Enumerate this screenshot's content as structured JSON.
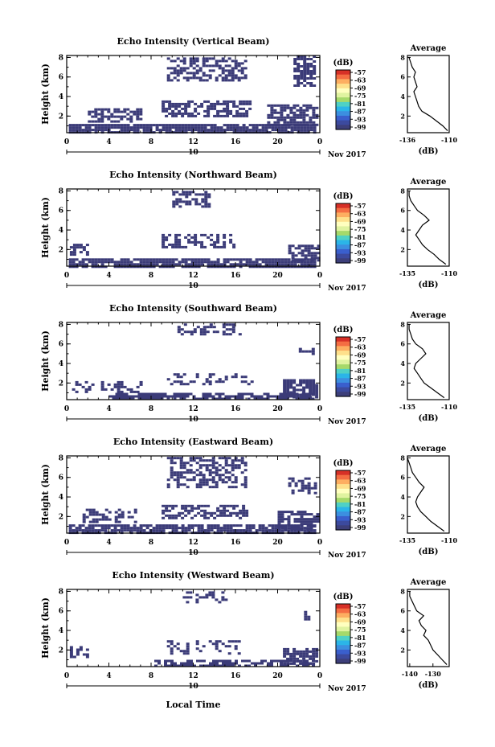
{
  "figure": {
    "xlabel": "Local Time",
    "date_label": "Nov 2017",
    "colorbar_unit": "(dB)",
    "colorbar_ticks": [
      "-57",
      "-63",
      "-69",
      "-75",
      "-81",
      "-87",
      "-93",
      "-99"
    ],
    "colorbar_colors": [
      "#d73027",
      "#f46d43",
      "#fdae61",
      "#fee08b",
      "#ffffbf",
      "#e0f3a0",
      "#a6d96a",
      "#4fd1c5",
      "#2bb5e8",
      "#3c8fe0",
      "#3a5fcd",
      "#3c4a9e",
      "#3d3f7a"
    ],
    "echo_color": "#3b3b78",
    "avg_line_color": "#000000"
  },
  "chart_data": [
    {
      "type": "heatmap",
      "title": "Echo Intensity (Vertical Beam)",
      "ylabel": "Height (km)",
      "x_ticks": [
        "0",
        "4",
        "8",
        "12",
        "16",
        "20",
        "0"
      ],
      "x_day_label": "10",
      "xlim": [
        0,
        24
      ],
      "y_ticks": [
        "2",
        "4",
        "6",
        "8"
      ],
      "ylim": [
        0.3,
        8.2
      ],
      "clim": [
        -99,
        -57
      ],
      "echo_regions": [
        {
          "x": [
            0.2,
            23.5
          ],
          "y": [
            0.3,
            1.2
          ],
          "density": 0.9
        },
        {
          "x": [
            2.0,
            7.0
          ],
          "y": [
            1.5,
            2.8
          ],
          "density": 0.55
        },
        {
          "x": [
            9.0,
            17.5
          ],
          "y": [
            2.0,
            3.6
          ],
          "density": 0.6
        },
        {
          "x": [
            9.5,
            17.0
          ],
          "y": [
            5.6,
            8.0
          ],
          "density": 0.5
        },
        {
          "x": [
            21.5,
            23.6
          ],
          "y": [
            5.0,
            8.2
          ],
          "density": 0.65
        },
        {
          "x": [
            19.0,
            23.8
          ],
          "y": [
            1.0,
            3.2
          ],
          "density": 0.7
        }
      ],
      "average": {
        "title": "Average",
        "xlabel": "(dB)",
        "x_ticks": [
          "-136",
          "-110"
        ],
        "xlim": [
          -136,
          -110
        ],
        "y_ticks": [
          "2",
          "4",
          "6",
          "8"
        ],
        "heights": [
          0.5,
          1.0,
          1.5,
          2.0,
          2.5,
          3.0,
          3.5,
          4.0,
          4.5,
          5.0,
          5.5,
          6.0,
          6.5,
          7.0,
          7.5,
          8.0
        ],
        "values": [
          -111,
          -114,
          -118,
          -122,
          -127,
          -129,
          -130,
          -131,
          -132,
          -130,
          -131,
          -132,
          -131,
          -133,
          -134,
          -135
        ]
      }
    },
    {
      "type": "heatmap",
      "title": "Echo Intensity (Northward Beam)",
      "ylabel": "Height (km)",
      "x_ticks": [
        "0",
        "4",
        "8",
        "12",
        "16",
        "20",
        "0"
      ],
      "x_day_label": "10",
      "xlim": [
        0,
        24
      ],
      "y_ticks": [
        "2",
        "4",
        "6",
        "8"
      ],
      "ylim": [
        0.3,
        8.2
      ],
      "clim": [
        -99,
        -57
      ],
      "echo_regions": [
        {
          "x": [
            0.2,
            23.5
          ],
          "y": [
            0.3,
            1.1
          ],
          "density": 0.85
        },
        {
          "x": [
            0.3,
            2.0
          ],
          "y": [
            1.5,
            2.6
          ],
          "density": 0.6
        },
        {
          "x": [
            9.0,
            16.0
          ],
          "y": [
            2.2,
            3.6
          ],
          "density": 0.5
        },
        {
          "x": [
            10.0,
            13.5
          ],
          "y": [
            6.5,
            8.0
          ],
          "density": 0.55
        },
        {
          "x": [
            21.0,
            23.8
          ],
          "y": [
            0.8,
            2.5
          ],
          "density": 0.7
        }
      ],
      "average": {
        "title": "Average",
        "xlabel": "(dB)",
        "x_ticks": [
          "-135",
          "-110"
        ],
        "xlim": [
          -135,
          -110
        ],
        "y_ticks": [
          "2",
          "4",
          "6",
          "8"
        ],
        "heights": [
          0.5,
          1.0,
          1.5,
          2.0,
          2.5,
          3.0,
          3.5,
          4.0,
          4.5,
          5.0,
          5.5,
          6.0,
          6.5,
          7.0,
          7.5,
          8.0
        ],
        "values": [
          -112,
          -116,
          -119,
          -123,
          -126,
          -128,
          -130,
          -128,
          -126,
          -122,
          -125,
          -129,
          -131,
          -133,
          -134,
          -134
        ]
      }
    },
    {
      "type": "heatmap",
      "title": "Echo Intensity (Southward Beam)",
      "ylabel": "Height (km)",
      "x_ticks": [
        "0",
        "4",
        "8",
        "12",
        "16",
        "20",
        "0"
      ],
      "x_day_label": "10",
      "xlim": [
        0,
        24
      ],
      "y_ticks": [
        "2",
        "4",
        "6",
        "8"
      ],
      "ylim": [
        0.3,
        8.2
      ],
      "clim": [
        -99,
        -57
      ],
      "echo_regions": [
        {
          "x": [
            4.0,
            23.5
          ],
          "y": [
            0.3,
            1.0
          ],
          "density": 0.75
        },
        {
          "x": [
            0.5,
            7.0
          ],
          "y": [
            1.2,
            2.2
          ],
          "density": 0.35
        },
        {
          "x": [
            9.5,
            17.5
          ],
          "y": [
            1.8,
            3.0
          ],
          "density": 0.35
        },
        {
          "x": [
            10.5,
            16.5
          ],
          "y": [
            7.0,
            8.1
          ],
          "density": 0.35
        },
        {
          "x": [
            20.5,
            23.8
          ],
          "y": [
            0.6,
            2.4
          ],
          "density": 0.75
        },
        {
          "x": [
            22.0,
            23.5
          ],
          "y": [
            5.0,
            5.6
          ],
          "density": 0.6
        }
      ],
      "average": {
        "title": "Average",
        "xlabel": "(dB)",
        "x_ticks": [
          "-135",
          "-110"
        ],
        "xlim": [
          -135,
          -110
        ],
        "y_ticks": [
          "2",
          "4",
          "6",
          "8"
        ],
        "heights": [
          0.5,
          1.0,
          1.5,
          2.0,
          2.5,
          3.0,
          3.5,
          4.0,
          4.5,
          5.0,
          5.5,
          6.0,
          6.5,
          7.0,
          7.5,
          8.0
        ],
        "values": [
          -113,
          -117,
          -121,
          -125,
          -127,
          -129,
          -131,
          -130,
          -127,
          -124,
          -126,
          -130,
          -132,
          -133,
          -134,
          -134
        ]
      }
    },
    {
      "type": "heatmap",
      "title": "Echo Intensity (Eastward Beam)",
      "ylabel": "Height (km)",
      "x_ticks": [
        "0",
        "4",
        "8",
        "12",
        "16",
        "20",
        "0"
      ],
      "x_day_label": "10",
      "xlim": [
        0,
        24
      ],
      "y_ticks": [
        "2",
        "4",
        "6",
        "8"
      ],
      "ylim": [
        0.3,
        8.2
      ],
      "clim": [
        -99,
        -57
      ],
      "echo_regions": [
        {
          "x": [
            0.2,
            23.5
          ],
          "y": [
            0.3,
            1.2
          ],
          "density": 0.85
        },
        {
          "x": [
            1.5,
            6.5
          ],
          "y": [
            1.4,
            2.8
          ],
          "density": 0.45
        },
        {
          "x": [
            9.0,
            17.0
          ],
          "y": [
            1.8,
            3.2
          ],
          "density": 0.55
        },
        {
          "x": [
            9.5,
            17.0
          ],
          "y": [
            5.0,
            8.1
          ],
          "density": 0.55
        },
        {
          "x": [
            20.0,
            23.8
          ],
          "y": [
            0.8,
            2.6
          ],
          "density": 0.7
        },
        {
          "x": [
            21.0,
            23.6
          ],
          "y": [
            4.5,
            6.0
          ],
          "density": 0.4
        }
      ],
      "average": {
        "title": "Average",
        "xlabel": "(dB)",
        "x_ticks": [
          "-135",
          "-110"
        ],
        "xlim": [
          -135,
          -110
        ],
        "y_ticks": [
          "2",
          "4",
          "6",
          "8"
        ],
        "heights": [
          0.5,
          1.0,
          1.5,
          2.0,
          2.5,
          3.0,
          3.5,
          4.0,
          4.5,
          5.0,
          5.5,
          6.0,
          6.5,
          7.0,
          7.5,
          8.0
        ],
        "values": [
          -113,
          -117,
          -121,
          -124,
          -127,
          -129,
          -130,
          -129,
          -127,
          -125,
          -128,
          -130,
          -132,
          -133,
          -134,
          -135
        ]
      }
    },
    {
      "type": "heatmap",
      "title": "Echo Intensity (Westward Beam)",
      "ylabel": "Height (km)",
      "x_ticks": [
        "0",
        "4",
        "8",
        "12",
        "16",
        "20",
        "0"
      ],
      "x_day_label": "10",
      "xlim": [
        0,
        24
      ],
      "y_ticks": [
        "2",
        "4",
        "6",
        "8"
      ],
      "ylim": [
        0.3,
        8.2
      ],
      "clim": [
        -99,
        -57
      ],
      "echo_regions": [
        {
          "x": [
            8.0,
            23.5
          ],
          "y": [
            0.3,
            1.0
          ],
          "density": 0.6
        },
        {
          "x": [
            0.3,
            2.0
          ],
          "y": [
            1.4,
            2.4
          ],
          "density": 0.5
        },
        {
          "x": [
            9.5,
            16.5
          ],
          "y": [
            1.6,
            3.0
          ],
          "density": 0.3
        },
        {
          "x": [
            11.0,
            15.0
          ],
          "y": [
            6.8,
            8.0
          ],
          "density": 0.3
        },
        {
          "x": [
            20.5,
            23.8
          ],
          "y": [
            0.6,
            2.2
          ],
          "density": 0.7
        },
        {
          "x": [
            22.5,
            23.3
          ],
          "y": [
            5.2,
            6.0
          ],
          "density": 0.5
        }
      ],
      "average": {
        "title": "Average",
        "xlabel": "(dB)",
        "x_ticks": [
          "-140",
          "-130"
        ],
        "xlim": [
          -141,
          -123
        ],
        "y_ticks": [
          "2",
          "4",
          "6",
          "8"
        ],
        "heights": [
          0.5,
          1.0,
          1.5,
          2.0,
          2.5,
          3.0,
          3.5,
          4.0,
          4.5,
          5.0,
          5.5,
          6.0,
          6.5,
          7.0,
          7.5,
          8.0
        ],
        "values": [
          -124,
          -126,
          -128,
          -130,
          -131,
          -132,
          -134,
          -133,
          -135,
          -136,
          -134,
          -137,
          -138,
          -139,
          -140,
          -140
        ]
      }
    }
  ]
}
